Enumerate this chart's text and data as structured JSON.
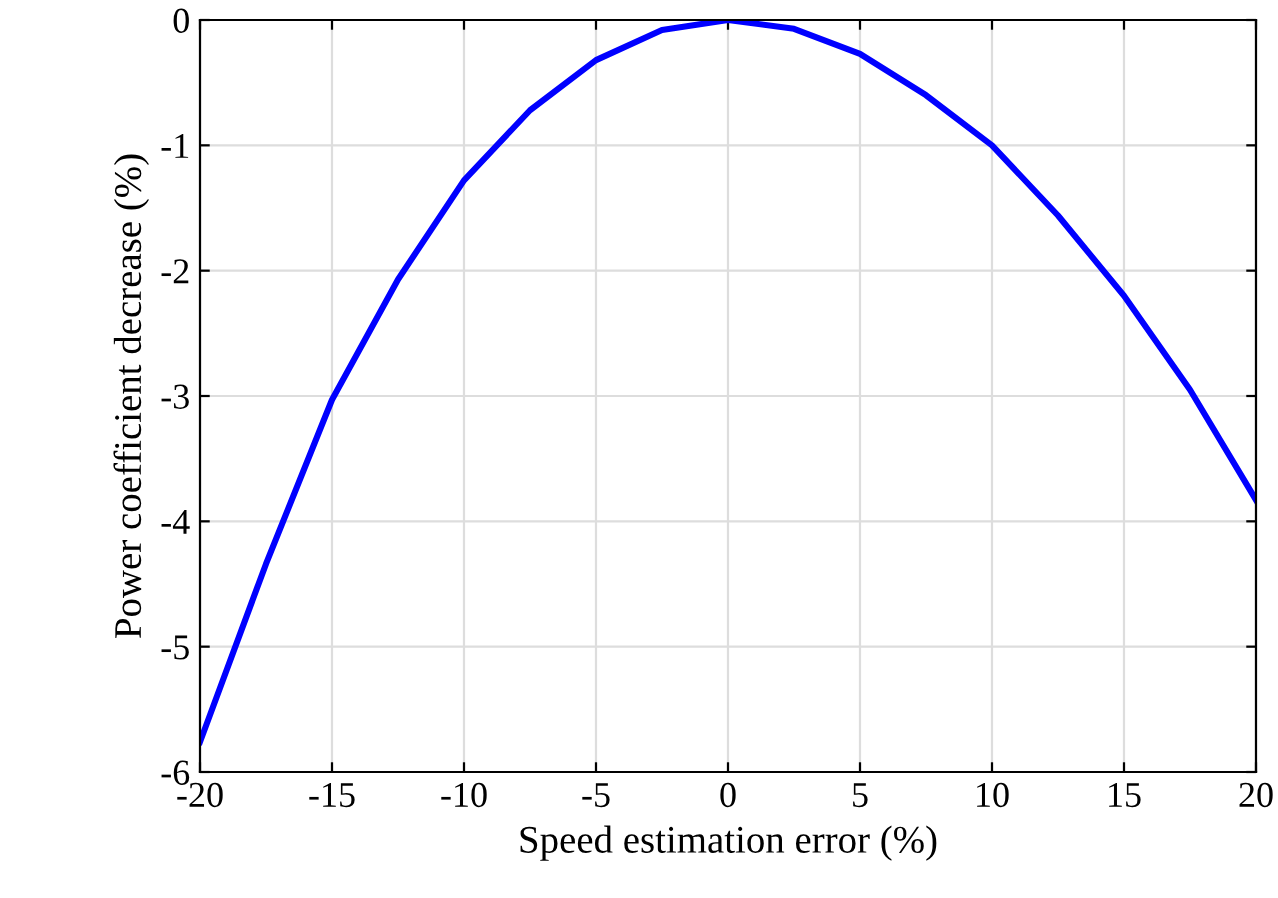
{
  "chart_data": {
    "type": "line",
    "xlabel": "Speed estimation error (%)",
    "ylabel": "Power coefficient decrease (%)",
    "x": [
      -20,
      -17.5,
      -15,
      -12.5,
      -10,
      -7.5,
      -5,
      -2.5,
      0,
      2.5,
      5,
      7.5,
      10,
      12.5,
      15,
      17.5,
      20
    ],
    "series": [
      {
        "color": "#0000ff",
        "values": [
          -5.76,
          -4.34,
          -3.03,
          -2.07,
          -1.28,
          -0.72,
          -0.32,
          -0.08,
          0,
          -0.07,
          -0.27,
          -0.6,
          -1.0,
          -1.56,
          -2.2,
          -2.95,
          -3.83
        ]
      }
    ],
    "xlim": [
      -20,
      20
    ],
    "ylim": [
      -6,
      0
    ],
    "xticks": [
      {
        "value": -20,
        "label": "-20"
      },
      {
        "value": -15,
        "label": "-15"
      },
      {
        "value": -10,
        "label": "-10"
      },
      {
        "value": -5,
        "label": "-5"
      },
      0,
      5,
      10,
      15,
      20
    ],
    "yticks": [
      {
        "value": -6,
        "label": "-6"
      },
      {
        "value": -5,
        "label": "-5"
      },
      {
        "value": -4,
        "label": "-4"
      },
      {
        "value": -3,
        "label": "-3"
      },
      {
        "value": -2,
        "label": "-2"
      },
      {
        "value": -1,
        "label": "-1"
      },
      0
    ],
    "grid": true,
    "marker": "none",
    "line_style": "solid"
  }
}
